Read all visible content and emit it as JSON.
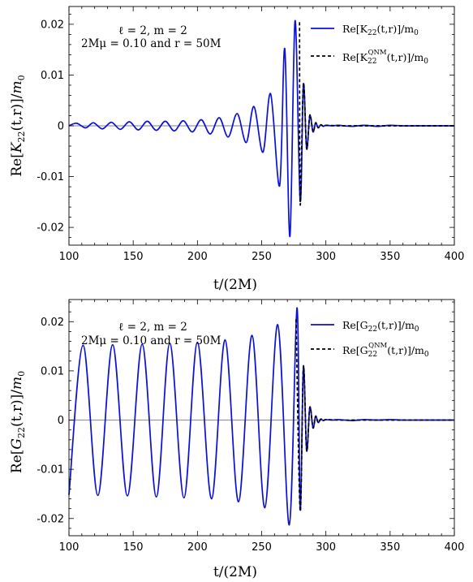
{
  "chart_data": [
    {
      "type": "line",
      "xlabel": "t/(2M)",
      "ylabel": "Re[K22(t,r)]/m0",
      "xlim": [
        100,
        400
      ],
      "ylim": [
        -0.0235,
        0.0235
      ],
      "xticks": [
        "100",
        "150",
        "200",
        "250",
        "300",
        "350",
        "400"
      ],
      "yticks": [
        "0.02",
        "0.01",
        "0",
        "-0.01",
        "-0.02"
      ],
      "annotations": [
        "ℓ = 2, m = 2",
        "2Mμ = 0.10 and r = 50M"
      ],
      "legend_position": "top-right",
      "series": [
        {
          "name": "Re[K22(t,r)]/m0",
          "color": "#0a10d6",
          "style": "solid",
          "x": [
            100,
            106,
            113,
            119,
            126,
            133,
            140,
            147,
            154,
            161,
            168,
            175,
            182,
            189,
            196,
            203,
            210,
            217,
            224,
            231,
            238,
            244,
            251,
            257,
            264,
            268,
            272,
            276,
            280,
            282.5,
            285,
            287.5,
            290,
            292,
            294,
            296,
            298,
            300,
            305,
            310,
            320,
            330,
            340,
            350,
            360,
            370,
            380,
            390,
            400
          ],
          "y": [
            0,
            0.0005,
            -0.0004,
            0.0006,
            -0.0006,
            0.0007,
            -0.0007,
            0.0008,
            -0.0008,
            0.0009,
            -0.0009,
            0.0009,
            -0.001,
            0.001,
            -0.0012,
            0.0012,
            -0.0016,
            0.0016,
            -0.0022,
            0.0024,
            -0.0033,
            0.0038,
            -0.0052,
            0.0063,
            -0.0118,
            0.0152,
            -0.0218,
            0.0207,
            -0.0148,
            0.0082,
            -0.0045,
            0.002,
            -0.0012,
            0.0006,
            -0.0004,
            0.0002,
            -0.0001,
            0.0001,
            0,
            0.0001,
            -0.0001,
            0.0001,
            -0.0001,
            0.0001,
            0,
            0,
            0,
            0,
            0
          ]
        },
        {
          "name": "Re[K22^QNM(t,r)]/m0",
          "color": "#000000",
          "style": "dashed",
          "x": [
            279.5,
            280,
            282.5,
            285,
            287.5,
            290,
            292,
            294,
            296,
            298,
            300,
            310,
            320,
            330,
            340,
            350,
            360,
            370,
            380,
            390,
            400
          ],
          "y": [
            0.0204,
            -0.0155,
            0.0083,
            -0.0045,
            0.0021,
            -0.0012,
            0.0006,
            -0.0004,
            0.0002,
            -0.0001,
            0.0001,
            0,
            0,
            0,
            0,
            0,
            0,
            0,
            0,
            0,
            0
          ]
        }
      ]
    },
    {
      "type": "line",
      "xlabel": "t/(2M)",
      "ylabel": "Re[G22(t,r)]/m0",
      "xlim": [
        100,
        400
      ],
      "ylim": [
        -0.0235,
        0.0245
      ],
      "xticks": [
        "100",
        "150",
        "200",
        "250",
        "300",
        "350",
        "400"
      ],
      "yticks": [
        "0.02",
        "0.01",
        "0",
        "-0.01",
        "-0.02"
      ],
      "annotations": [
        "ℓ = 2, m = 2",
        "2Mμ = 0.10 and r = 50M"
      ],
      "legend_position": "top-right",
      "series": [
        {
          "name": "Re[G22(t,r)]/m0",
          "color": "#0a10d6",
          "style": "solid",
          "x": [
            100,
            111,
            122.5,
            134,
            145.5,
            157,
            168,
            178.5,
            189.5,
            200,
            211,
            221.5,
            232,
            242.5,
            252.5,
            262.5,
            271.5,
            277.5,
            280,
            282.5,
            285,
            287.5,
            290,
            292,
            294,
            296,
            298,
            300,
            305,
            310,
            320,
            330,
            340,
            350,
            360,
            370,
            380,
            390,
            400
          ],
          "y": [
            -0.0152,
            0.0152,
            -0.0153,
            0.0153,
            -0.0154,
            0.0154,
            -0.0156,
            0.0156,
            -0.0158,
            0.0158,
            -0.016,
            0.0163,
            -0.0166,
            0.0172,
            -0.0178,
            0.0194,
            -0.0213,
            0.0228,
            -0.0182,
            0.0108,
            -0.0062,
            0.0026,
            -0.0016,
            0.0008,
            -0.0005,
            0.0002,
            -0.0001,
            0.0001,
            0,
            0.0001,
            -0.0001,
            0.0001,
            0,
            0.0001,
            0,
            0,
            0,
            0,
            0
          ]
        },
        {
          "name": "Re[G22^QNM(t,r)]/m0",
          "color": "#000000",
          "style": "dashed",
          "x": [
            276.8,
            280,
            282.5,
            285,
            287.5,
            290,
            292,
            294,
            296,
            298,
            300,
            310,
            320,
            330,
            340,
            350,
            360,
            370,
            380,
            390,
            400
          ],
          "y": [
            0.0205,
            -0.0185,
            0.0109,
            -0.0062,
            0.0026,
            -0.0016,
            0.0008,
            -0.0005,
            0.0002,
            -0.0001,
            0.0001,
            0,
            0,
            0,
            0,
            0,
            0,
            0,
            0,
            0,
            0
          ]
        }
      ]
    }
  ]
}
